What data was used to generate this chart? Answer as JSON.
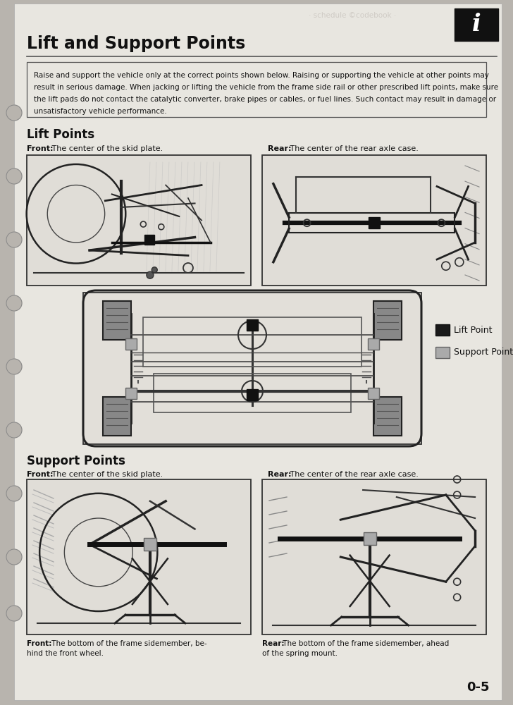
{
  "title": "Lift and Support Points",
  "page_number": "0-5",
  "info_icon_text": "i",
  "page_bg": "#b8b4ae",
  "content_bg": "#e8e6e0",
  "box_bg": "#dddbd5",
  "border_color": "#333333",
  "warning_text_lines": [
    "Raise and support the vehicle only at the correct points shown below. Raising or supporting the vehicle at other points may",
    "result in serious damage. When jacking or lifting the vehicle from the frame side rail or other prescribed lift points, make sure",
    "the lift pads do not contact the catalytic converter, brake pipes or cables, or fuel lines. Such contact may result in damage or",
    "unsatisfactory vehicle performance."
  ],
  "section1_title": "Lift Points",
  "front_lift_label": "Front:",
  "front_lift_desc": " The center of the skid plate.",
  "rear_lift_label": "Rear:",
  "rear_lift_desc": " The center of the rear axle case.",
  "legend_lift_point": "Lift Point",
  "legend_support_point": "Support Point",
  "legend_lift_color": "#1a1a1a",
  "legend_support_color": "#aaaaaa",
  "section2_title": "Support Points",
  "front_support_label": "Front:",
  "front_support_desc": " The bottom of the frame sidemember, be-\nhind the front wheel.",
  "rear_support_label": "Rear:",
  "rear_support_desc": " The bottom of the frame sidemember, ahead\nof the spring mount.",
  "watermark_text": "· schedule ©codebook ·",
  "holes_y": [
    870,
    790,
    700,
    610,
    520,
    430,
    340,
    250,
    160
  ],
  "title_fontsize": 17,
  "section_fontsize": 12,
  "label_fontsize": 8,
  "caption_fontsize": 7.5,
  "warning_fontsize": 7.5
}
